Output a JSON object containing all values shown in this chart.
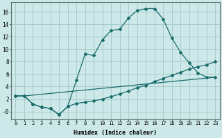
{
  "bg_color": "#cce8e8",
  "grid_color": "#aacccc",
  "line_color": "#1a6b6b",
  "xlabel": "Humidex (Indice chaleur)",
  "xlim": [
    -0.5,
    23.5
  ],
  "ylim": [
    -1.2,
    17.5
  ],
  "xticks": [
    0,
    1,
    2,
    3,
    4,
    5,
    6,
    7,
    8,
    9,
    10,
    11,
    12,
    13,
    14,
    15,
    16,
    17,
    18,
    19,
    20,
    21,
    22,
    23
  ],
  "yticks": [
    0,
    2,
    4,
    6,
    8,
    10,
    12,
    14,
    16
  ],
  "ytick_labels": [
    "-0",
    "2",
    "4",
    "6",
    "8",
    "10",
    "12",
    "14",
    "16"
  ],
  "line1_x": [
    0,
    1,
    2,
    3,
    4,
    5,
    6,
    7,
    8,
    9,
    10,
    11,
    12,
    13,
    14,
    15,
    16,
    17,
    18,
    19,
    20,
    21,
    22,
    23
  ],
  "line1_y": [
    2.5,
    2.5,
    1.2,
    0.7,
    0.5,
    -0.5,
    0.8,
    5.0,
    9.2,
    9.0,
    11.5,
    13.0,
    13.2,
    15.0,
    16.2,
    16.5,
    16.5,
    14.8,
    11.8,
    9.5,
    7.8,
    6.2,
    5.5,
    5.5
  ],
  "line2_x": [
    0,
    1,
    2,
    3,
    4,
    5,
    6,
    7,
    8,
    9,
    10,
    11,
    12,
    13,
    14,
    15,
    16,
    17,
    18,
    19,
    20,
    21,
    22,
    23
  ],
  "line2_y": [
    2.5,
    2.5,
    1.2,
    0.7,
    0.5,
    -0.5,
    0.8,
    1.3,
    1.5,
    1.7,
    2.0,
    2.4,
    2.8,
    3.3,
    3.8,
    4.2,
    4.8,
    5.3,
    5.8,
    6.3,
    6.8,
    7.2,
    7.5,
    8.0
  ],
  "line3_x": [
    0,
    1,
    23
  ],
  "line3_y": [
    2.5,
    2.5,
    5.5
  ],
  "xlabel_fontsize": 5.5,
  "tick_fontsize": 5.0
}
